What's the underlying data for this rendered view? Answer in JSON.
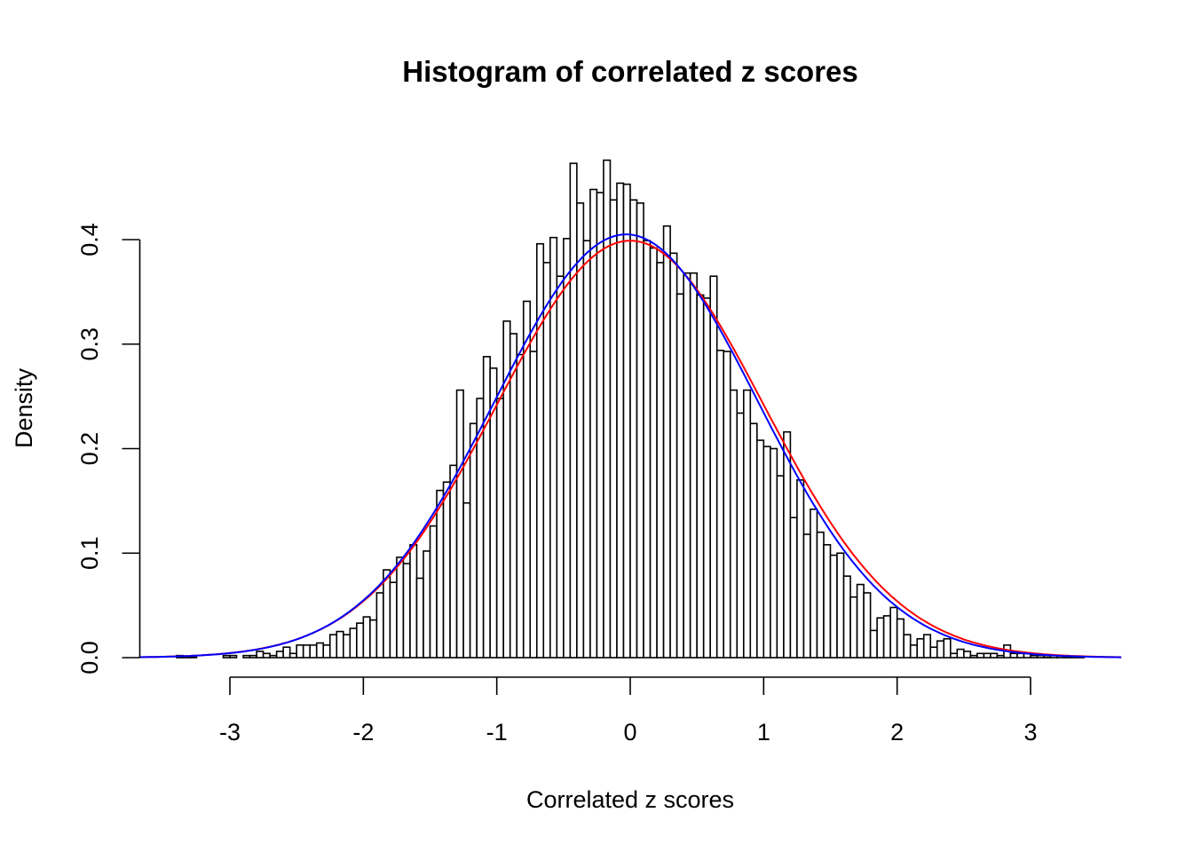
{
  "chart_data": {
    "type": "bar",
    "title": "Histogram of correlated z scores",
    "xlabel": "Correlated z scores",
    "ylabel": "Density",
    "xlim": [
      -3.68,
      3.68
    ],
    "ylim": [
      0,
      0.4
    ],
    "x_ticks": [
      "-3",
      "-2",
      "-1",
      "0",
      "1",
      "2",
      "3"
    ],
    "y_ticks": [
      "0.0",
      "0.1",
      "0.2",
      "0.3",
      "0.4"
    ],
    "grid": false,
    "bins": {
      "start": -3.4,
      "width": 0.05,
      "densities": [
        0.002,
        0.0005,
        0.0005,
        0,
        0,
        0,
        0,
        0.002,
        0.002,
        0,
        0.002,
        0.002,
        0.006,
        0.004,
        0.002,
        0.006,
        0.01,
        0.004,
        0.012,
        0.012,
        0.012,
        0.014,
        0.012,
        0.022,
        0.025,
        0.022,
        0.028,
        0.033,
        0.039,
        0.036,
        0.062,
        0.084,
        0.072,
        0.096,
        0.09,
        0.108,
        0.076,
        0.102,
        0.126,
        0.16,
        0.168,
        0.184,
        0.256,
        0.148,
        0.224,
        0.248,
        0.288,
        0.277,
        0.248,
        0.322,
        0.31,
        0.29,
        0.341,
        0.293,
        0.396,
        0.378,
        0.402,
        0.365,
        0.401,
        0.473,
        0.435,
        0.399,
        0.448,
        0.445,
        0.476,
        0.438,
        0.454,
        0.453,
        0.438,
        0.435,
        0.399,
        0.392,
        0.378,
        0.413,
        0.387,
        0.348,
        0.368,
        0.368,
        0.347,
        0.344,
        0.365,
        0.294,
        0.293,
        0.256,
        0.234,
        0.256,
        0.224,
        0.208,
        0.202,
        0.2,
        0.174,
        0.216,
        0.134,
        0.17,
        0.118,
        0.142,
        0.12,
        0.108,
        0.098,
        0.1,
        0.078,
        0.058,
        0.07,
        0.062,
        0.026,
        0.038,
        0.04,
        0.048,
        0.037,
        0.022,
        0.012,
        0.018,
        0.022,
        0.01,
        0.016,
        0.018,
        0.004,
        0.008,
        0.006,
        0.002,
        0.004,
        0.004,
        0.004,
        0.002,
        0.012,
        0.004,
        0.004,
        0.004,
        0.002,
        0.002,
        0.0005,
        0.002,
        0.002,
        0.0005,
        0.0005,
        0.0005
      ]
    },
    "curves": [
      {
        "type": "normal-density",
        "mean": 0,
        "sd": 1,
        "color": "#ff0000"
      },
      {
        "type": "normal-density",
        "mean": -0.03,
        "sd": 0.985,
        "color": "#0000ff"
      }
    ]
  }
}
